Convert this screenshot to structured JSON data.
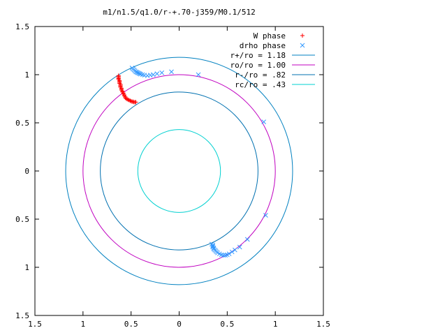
{
  "chart_data": {
    "type": "scatter",
    "title": "m1/n1.5/q1.0/r-+.70-j359/M0.1/512",
    "xlim": [
      -1.5,
      1.5
    ],
    "ylim": [
      -1.5,
      1.5
    ],
    "grid": false,
    "legend_position": "top-right",
    "x_ticks": [
      {
        "value": -1.5,
        "label": "1.5"
      },
      {
        "value": -1.0,
        "label": "1"
      },
      {
        "value": -0.5,
        "label": "0.5"
      },
      {
        "value": 0.0,
        "label": "0"
      },
      {
        "value": 0.5,
        "label": "0.5"
      },
      {
        "value": 1.0,
        "label": "1"
      },
      {
        "value": 1.5,
        "label": "1.5"
      }
    ],
    "y_ticks": [
      {
        "value": 1.5,
        "label": "1.5"
      },
      {
        "value": 1.0,
        "label": "1"
      },
      {
        "value": 0.5,
        "label": "0.5"
      },
      {
        "value": 0.0,
        "label": "0"
      },
      {
        "value": -0.5,
        "label": "0.5"
      },
      {
        "value": -1.0,
        "label": "1"
      },
      {
        "value": -1.5,
        "label": "1.5"
      }
    ],
    "circles": [
      {
        "name": "r+/ro = 1.18",
        "radius": 1.18,
        "color": "#0080c0"
      },
      {
        "name": "ro/ro = 1.00",
        "radius": 1.0,
        "color": "#c000c0"
      },
      {
        "name": "r-/ro = .82",
        "radius": 0.82,
        "color": "#0070b0"
      },
      {
        "name": "rc/ro = .43",
        "radius": 0.43,
        "color": "#00d0d0"
      }
    ],
    "series": [
      {
        "name": "W phase",
        "marker": "plus",
        "color": "#ff0000",
        "points": [
          [
            -0.63,
            0.99
          ],
          [
            -0.63,
            0.98
          ],
          [
            -0.63,
            0.97
          ],
          [
            -0.63,
            0.96
          ],
          [
            -0.63,
            0.95
          ],
          [
            -0.62,
            0.94
          ],
          [
            -0.62,
            0.93
          ],
          [
            -0.62,
            0.92
          ],
          [
            -0.62,
            0.91
          ],
          [
            -0.61,
            0.9
          ],
          [
            -0.61,
            0.89
          ],
          [
            -0.61,
            0.88
          ],
          [
            -0.61,
            0.87
          ],
          [
            -0.6,
            0.86
          ],
          [
            -0.6,
            0.85
          ],
          [
            -0.6,
            0.84
          ],
          [
            -0.59,
            0.83
          ],
          [
            -0.59,
            0.82
          ],
          [
            -0.58,
            0.81
          ],
          [
            -0.58,
            0.8
          ],
          [
            -0.57,
            0.79
          ],
          [
            -0.57,
            0.78
          ],
          [
            -0.56,
            0.77
          ],
          [
            -0.56,
            0.76
          ],
          [
            -0.55,
            0.75
          ],
          [
            -0.54,
            0.745
          ],
          [
            -0.53,
            0.74
          ],
          [
            -0.52,
            0.735
          ],
          [
            -0.51,
            0.73
          ],
          [
            -0.5,
            0.725
          ],
          [
            -0.49,
            0.72
          ],
          [
            -0.48,
            0.72
          ],
          [
            -0.47,
            0.715
          ],
          [
            -0.46,
            0.715
          ],
          [
            -0.45,
            0.715
          ]
        ]
      },
      {
        "name": "drho phase",
        "marker": "cross",
        "color": "#3399ff",
        "points": [
          [
            -0.49,
            1.07
          ],
          [
            -0.48,
            1.06
          ],
          [
            -0.47,
            1.05
          ],
          [
            -0.46,
            1.04
          ],
          [
            -0.45,
            1.03
          ],
          [
            -0.44,
            1.025
          ],
          [
            -0.43,
            1.02
          ],
          [
            -0.42,
            1.015
          ],
          [
            -0.41,
            1.01
          ],
          [
            -0.4,
            1.005
          ],
          [
            -0.38,
            1.0
          ],
          [
            -0.36,
            0.995
          ],
          [
            -0.33,
            0.99
          ],
          [
            -0.3,
            0.995
          ],
          [
            -0.27,
            1.0
          ],
          [
            -0.23,
            1.01
          ],
          [
            -0.18,
            1.02
          ],
          [
            -0.08,
            1.03
          ],
          [
            0.2,
            1.0
          ],
          [
            0.88,
            0.51
          ],
          [
            0.9,
            -0.46
          ],
          [
            0.71,
            -0.71
          ],
          [
            0.63,
            -0.79
          ],
          [
            0.58,
            -0.82
          ],
          [
            0.55,
            -0.84
          ],
          [
            0.52,
            -0.86
          ],
          [
            0.5,
            -0.87
          ],
          [
            0.48,
            -0.875
          ],
          [
            0.46,
            -0.875
          ],
          [
            0.44,
            -0.87
          ],
          [
            0.42,
            -0.86
          ],
          [
            0.4,
            -0.85
          ],
          [
            0.39,
            -0.84
          ],
          [
            0.38,
            -0.83
          ],
          [
            0.37,
            -0.82
          ],
          [
            0.36,
            -0.81
          ],
          [
            0.36,
            -0.8
          ],
          [
            0.35,
            -0.79
          ],
          [
            0.35,
            -0.78
          ],
          [
            0.35,
            -0.77
          ],
          [
            0.34,
            -0.76
          ]
        ]
      }
    ]
  }
}
